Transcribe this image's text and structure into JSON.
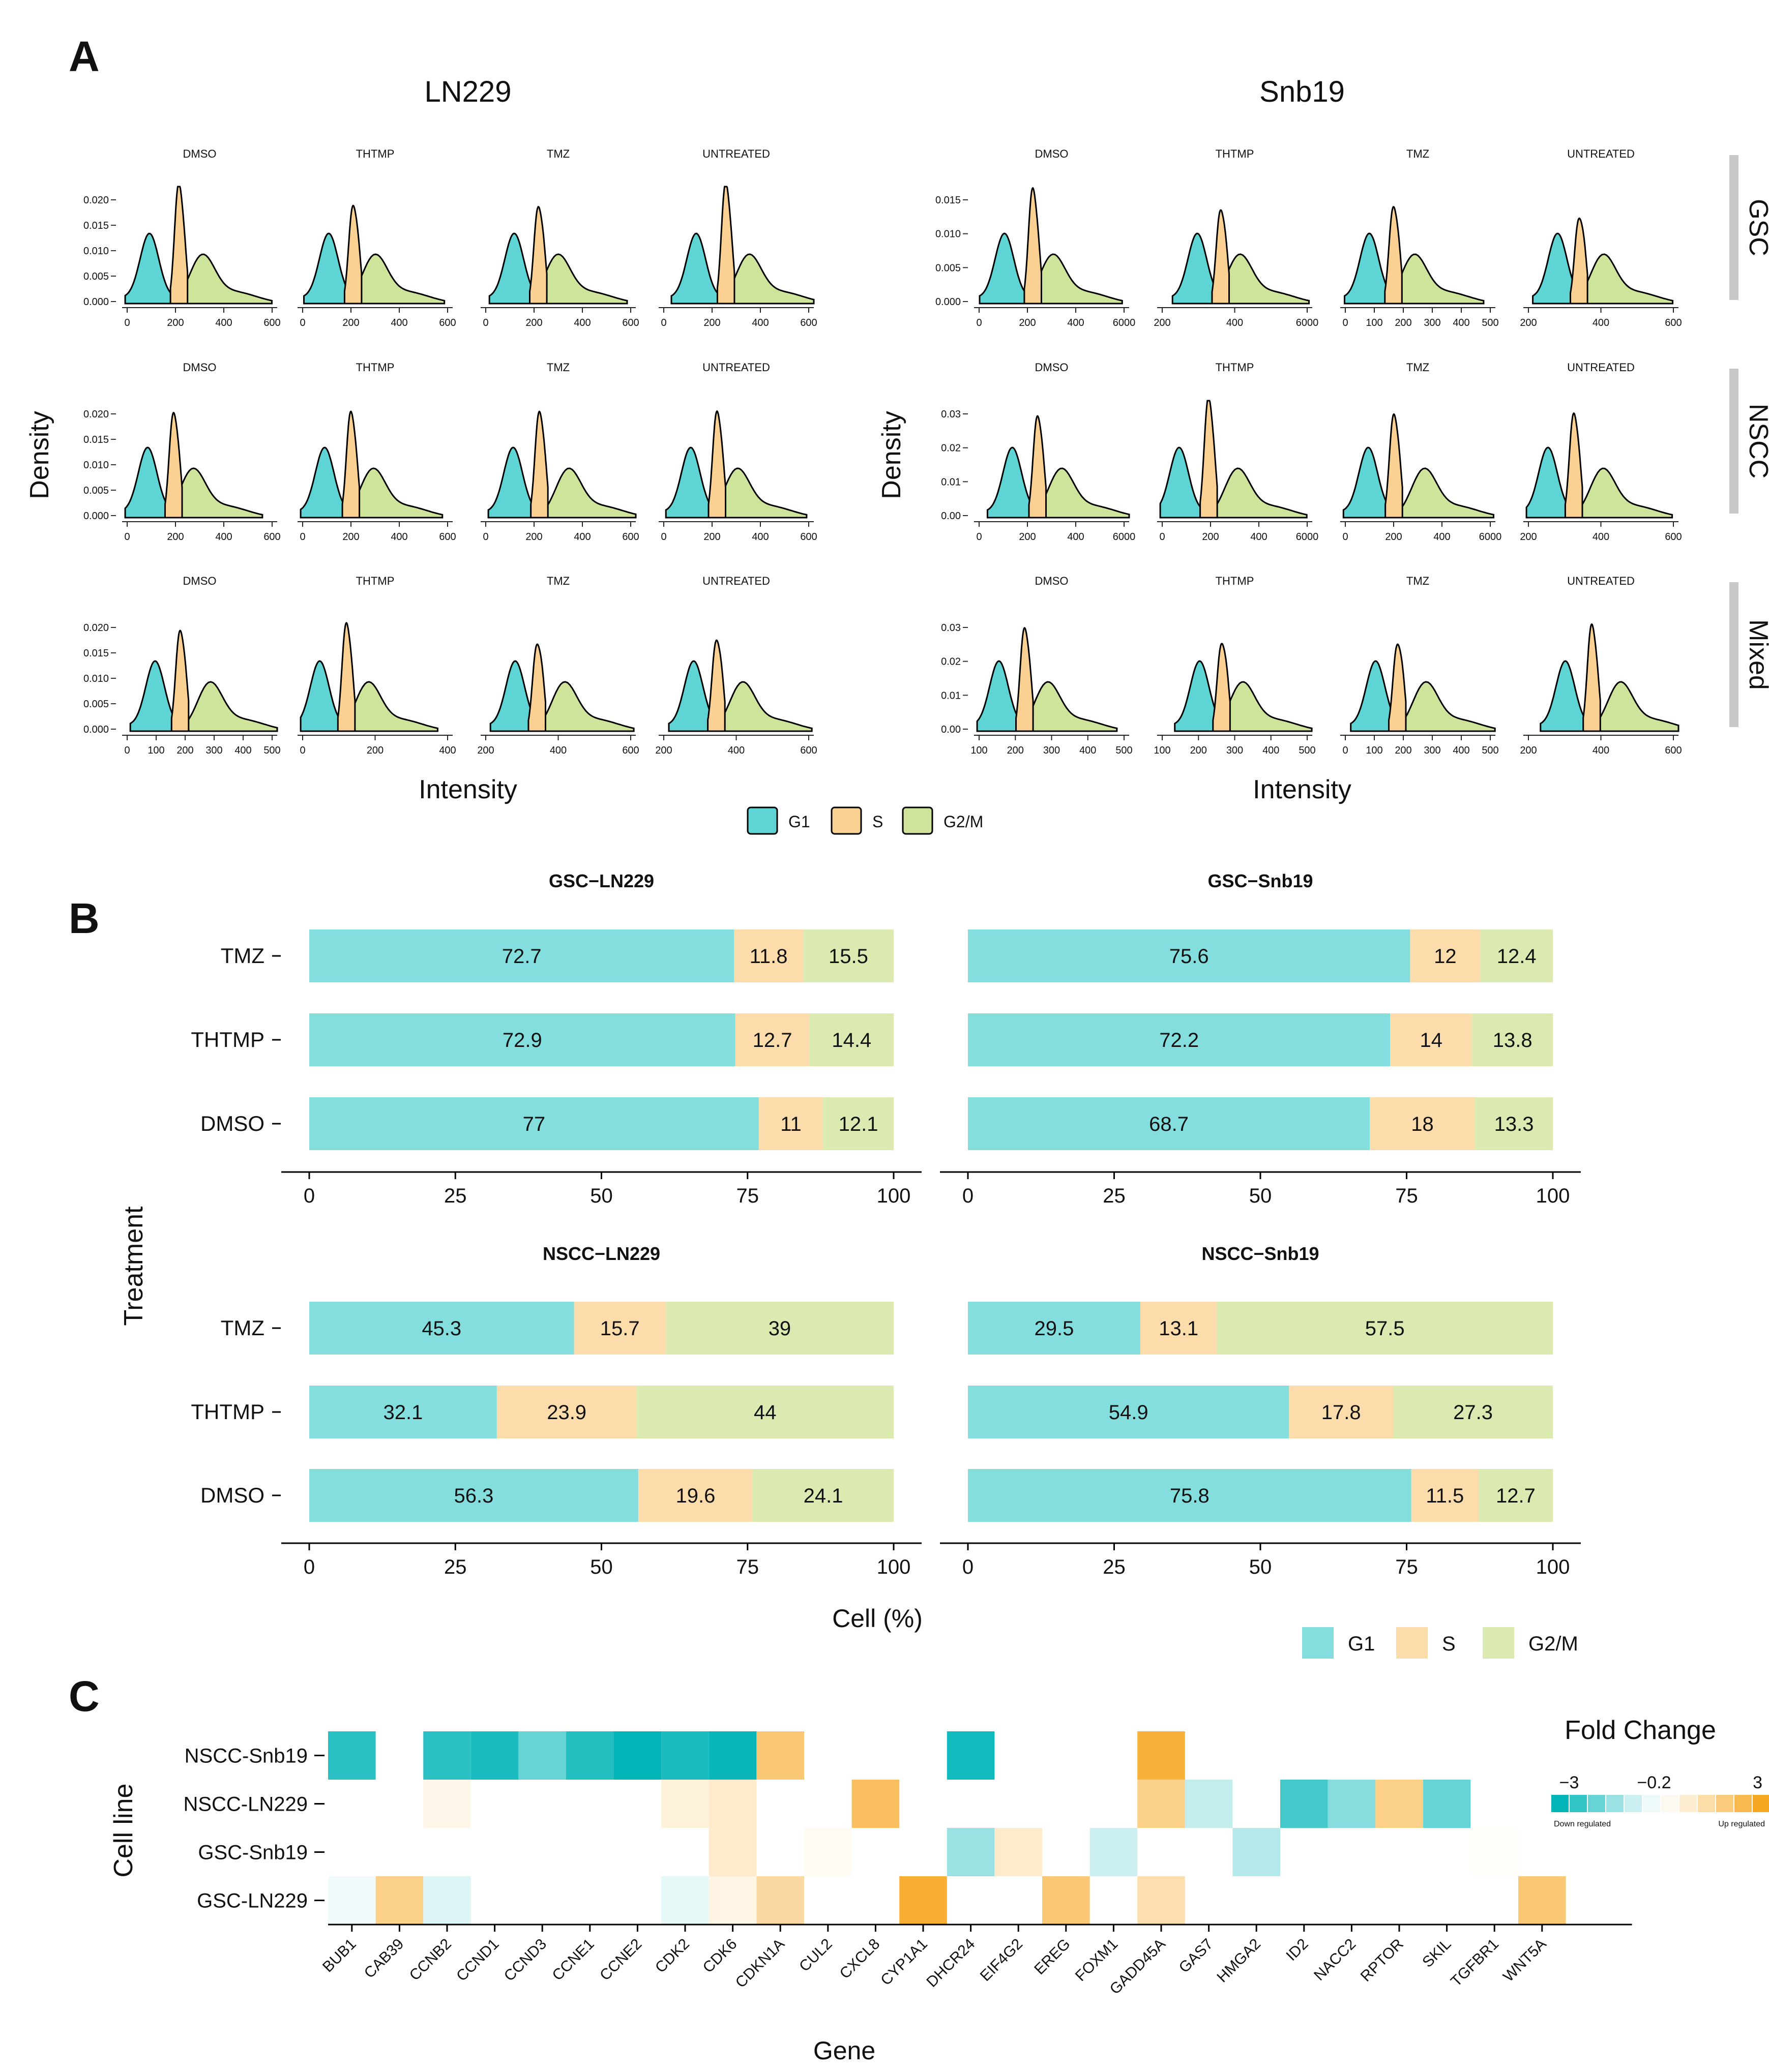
{
  "figure": {
    "panel_labels": [
      "A",
      "B",
      "C"
    ]
  },
  "colors": {
    "g1": "#5fd4d4",
    "s": "#fbd193",
    "g2m": "#cfe49b",
    "g1_bar": "#85dede",
    "s_bar": "#fcdcab",
    "g2m_bar": "#dbeab0",
    "heat_down": "#00b5b8",
    "heat_up": "#f7a823"
  },
  "chart_data": [
    {
      "id": "panelA",
      "type": "area",
      "title": "",
      "cell_lines": [
        "LN229",
        "Snb19"
      ],
      "treatments": [
        "DMSO",
        "THTMP",
        "TMZ",
        "UNTREATED"
      ],
      "rows": [
        "GSC",
        "NSCC",
        "Mixed"
      ],
      "xlabel": "Intensity",
      "ylabel": "Density",
      "legend": {
        "items": [
          "G1",
          "S",
          "G2/M"
        ],
        "position": "bottom"
      },
      "ln229_y_ticks": [
        "0.000",
        "0.005",
        "0.010",
        "0.015",
        "0.020"
      ],
      "snb19_y_ticks": {
        "GSC": [
          "0.000",
          "0.005",
          "0.010",
          "0.015"
        ],
        "NSCC": [
          "0.00",
          "0.01",
          "0.02",
          "0.03"
        ],
        "Mixed": [
          "0.00",
          "0.01",
          "0.02",
          "0.03"
        ]
      },
      "x_ticks": {
        "LN229": {
          "GSC": [
            [
              "0",
              "200",
              "400",
              "600"
            ],
            [
              "0",
              "200",
              "400",
              "600"
            ],
            [
              "0",
              "200",
              "400",
              "600"
            ],
            [
              "0",
              "200",
              "400",
              "600"
            ]
          ],
          "NSCC": [
            [
              "0",
              "200",
              "400",
              "600"
            ],
            [
              "0",
              "200",
              "400",
              "600"
            ],
            [
              "0",
              "200",
              "400",
              "600"
            ],
            [
              "0",
              "200",
              "400",
              "600"
            ]
          ],
          "Mixed": [
            [
              "0",
              "100",
              "200",
              "300",
              "400",
              "500"
            ],
            [
              "0",
              "200",
              "400"
            ],
            [
              "200",
              "400",
              "600"
            ],
            [
              "200",
              "400",
              "600"
            ]
          ]
        },
        "Snb19": {
          "GSC": [
            [
              "0",
              "200",
              "400",
              "6000"
            ],
            [
              "200",
              "400",
              "6000"
            ],
            [
              "0",
              "100",
              "200",
              "300",
              "400",
              "500"
            ],
            [
              "200",
              "400",
              "600"
            ]
          ],
          "NSCC": [
            [
              "0",
              "200",
              "400",
              "6000"
            ],
            [
              "0",
              "200",
              "400",
              "6000"
            ],
            [
              "0",
              "200",
              "400",
              "6000"
            ],
            [
              "200",
              "400",
              "600"
            ]
          ],
          "Mixed": [
            [
              "100",
              "200",
              "300",
              "400",
              "500"
            ],
            [
              "100",
              "200",
              "300",
              "400",
              "500"
            ],
            [
              "0",
              "100",
              "200",
              "300",
              "400",
              "500"
            ],
            [
              "200",
              "400",
              "600"
            ]
          ]
        }
      }
    },
    {
      "id": "panelB",
      "type": "bar",
      "stacked": true,
      "orientation": "horizontal",
      "xlabel": "Cell (%)",
      "ylabel": "Treatment",
      "xlim": [
        0,
        100
      ],
      "x_ticks": [
        "0",
        "25",
        "50",
        "75",
        "100"
      ],
      "categories": [
        "TMZ",
        "THTMP",
        "DMSO"
      ],
      "legend": {
        "items": [
          "G1",
          "S",
          "G2/M"
        ],
        "position": "bottom-right"
      },
      "facets": [
        {
          "title": "GSC−LN229",
          "values": {
            "TMZ": [
              72.7,
              11.8,
              15.5
            ],
            "THTMP": [
              72.9,
              12.7,
              14.4
            ],
            "DMSO": [
              77,
              11,
              12.1
            ]
          }
        },
        {
          "title": "GSC−Snb19",
          "values": {
            "TMZ": [
              75.6,
              12,
              12.4
            ],
            "THTMP": [
              72.2,
              14,
              13.8
            ],
            "DMSO": [
              68.7,
              18,
              13.3
            ]
          }
        },
        {
          "title": "NSCC−LN229",
          "values": {
            "TMZ": [
              45.3,
              15.7,
              39
            ],
            "THTMP": [
              32.1,
              23.9,
              44
            ],
            "DMSO": [
              56.3,
              19.6,
              24.1
            ]
          }
        },
        {
          "title": "NSCC−Snb19",
          "values": {
            "TMZ": [
              29.5,
              13.1,
              57.5
            ],
            "THTMP": [
              54.9,
              17.8,
              27.3
            ],
            "DMSO": [
              75.8,
              11.5,
              12.7
            ]
          }
        }
      ]
    },
    {
      "id": "panelC",
      "type": "heatmap",
      "xlabel": "Gene",
      "ylabel": "Cell line",
      "rows": [
        "NSCC-Snb19",
        "NSCC-LN229",
        "GSC-Snb19",
        "GSC-LN229"
      ],
      "genes": [
        "BUB1",
        "CAB39",
        "CCNB2",
        "CCND1",
        "CCND3",
        "CCNE1",
        "CCNE2",
        "CDK2",
        "CDK6",
        "CDKN1A",
        "CUL2",
        "CXCL8",
        "CYP1A1",
        "DHCR24",
        "EIF4G2",
        "EREG",
        "FOXM1",
        "GADD45A",
        "GAS7",
        "HMGA2",
        "ID2",
        "NACC2",
        "RPTOR",
        "SKIL",
        "TGFBR1",
        "WNT5A"
      ],
      "values": [
        [
          -2.5,
          null,
          -2.5,
          -2.7,
          -1.8,
          -2.6,
          -3,
          -2.7,
          -2.9,
          1.9,
          null,
          null,
          null,
          -2.8,
          null,
          null,
          null,
          2.7,
          null,
          null,
          null,
          null,
          null,
          null,
          null,
          null
        ],
        [
          null,
          null,
          0.3,
          null,
          null,
          null,
          null,
          0.5,
          0.7,
          null,
          null,
          2.2,
          null,
          null,
          null,
          null,
          null,
          1.6,
          -0.7,
          null,
          -2.2,
          -1.4,
          1.6,
          -1.8,
          null,
          null
        ],
        [
          null,
          null,
          null,
          null,
          null,
          null,
          null,
          null,
          0.7,
          null,
          0.15,
          null,
          null,
          -1.2,
          0.7,
          null,
          -0.6,
          null,
          null,
          -0.9,
          null,
          null,
          null,
          null,
          0.05,
          null
        ],
        [
          -0.15,
          1.6,
          -0.4,
          null,
          null,
          null,
          null,
          -0.3,
          0.35,
          1.3,
          null,
          null,
          2.8,
          null,
          null,
          1.9,
          null,
          1.1,
          null,
          null,
          null,
          null,
          null,
          null,
          null,
          1.9
        ]
      ],
      "legend": {
        "title": "Fold Change",
        "ticks": [
          "−3",
          "−0.2",
          "3"
        ],
        "low_label": "Down regulated",
        "high_label": "Up regulated",
        "position": "top-right"
      }
    }
  ]
}
